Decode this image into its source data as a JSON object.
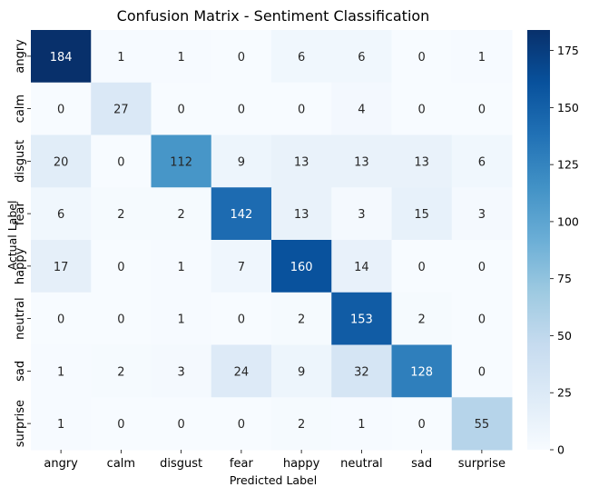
{
  "chart_data": {
    "type": "heatmap",
    "title": "Confusion Matrix - Sentiment Classification",
    "xlabel": "Predicted Label",
    "ylabel": "Actual Label",
    "x_categories": [
      "angry",
      "calm",
      "disgust",
      "fear",
      "happy",
      "neutral",
      "sad",
      "surprise"
    ],
    "y_categories": [
      "angry",
      "calm",
      "disgust",
      "fear",
      "happy",
      "neutral",
      "sad",
      "surprise"
    ],
    "values": [
      [
        184,
        1,
        1,
        0,
        6,
        6,
        0,
        1
      ],
      [
        0,
        27,
        0,
        0,
        0,
        4,
        0,
        0
      ],
      [
        20,
        0,
        112,
        9,
        13,
        13,
        13,
        6
      ],
      [
        6,
        2,
        2,
        142,
        13,
        3,
        15,
        3
      ],
      [
        17,
        0,
        1,
        7,
        160,
        14,
        0,
        0
      ],
      [
        0,
        0,
        1,
        0,
        2,
        153,
        2,
        0
      ],
      [
        1,
        2,
        3,
        24,
        9,
        32,
        128,
        0
      ],
      [
        1,
        0,
        0,
        0,
        2,
        1,
        0,
        55
      ]
    ],
    "colormap": "Blues",
    "vmin": 0,
    "vmax": 184,
    "colorbar_ticks": [
      0,
      25,
      50,
      75,
      100,
      125,
      150,
      175
    ],
    "annotate": true,
    "grid": false
  }
}
